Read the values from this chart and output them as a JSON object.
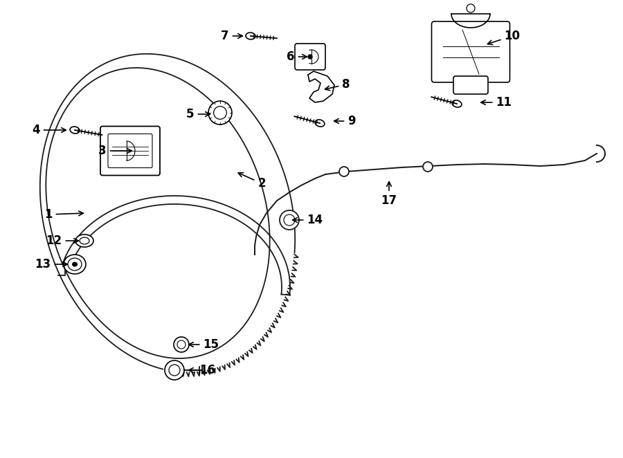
{
  "bg_color": "#ffffff",
  "line_color": "#1a1a1a",
  "lw": 1.3,
  "fig_w": 9.0,
  "fig_h": 6.62,
  "dpi": 100,
  "label_fontsize": 12,
  "labels": {
    "1": [
      70,
      310,
      125,
      308
    ],
    "2": [
      378,
      265,
      340,
      248
    ],
    "3": [
      148,
      218,
      195,
      218
    ],
    "4": [
      52,
      188,
      100,
      188
    ],
    "5": [
      275,
      165,
      308,
      165
    ],
    "6": [
      420,
      82,
      448,
      82
    ],
    "7": [
      325,
      52,
      355,
      52
    ],
    "8": [
      500,
      122,
      465,
      130
    ],
    "9": [
      508,
      175,
      478,
      175
    ],
    "10": [
      740,
      52,
      700,
      65
    ],
    "11": [
      728,
      148,
      690,
      148
    ],
    "12": [
      78,
      348,
      118,
      348
    ],
    "13": [
      62,
      382,
      102,
      382
    ],
    "14": [
      455,
      318,
      418,
      318
    ],
    "15": [
      305,
      498,
      268,
      498
    ],
    "16": [
      300,
      535,
      268,
      535
    ],
    "17": [
      562,
      290,
      562,
      258
    ]
  }
}
